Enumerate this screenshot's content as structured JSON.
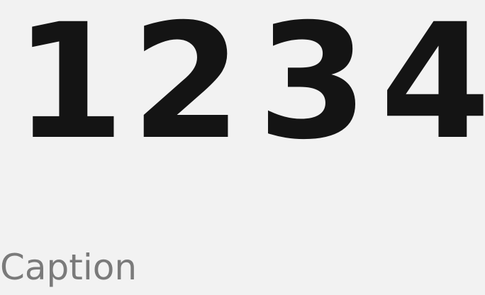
{
  "digits": [
    "1",
    "2",
    "3",
    "4"
  ],
  "caption": "Caption",
  "colors": {
    "background": "#f2f2f2",
    "digit": "#141414",
    "caption": "#7a7a7a"
  }
}
